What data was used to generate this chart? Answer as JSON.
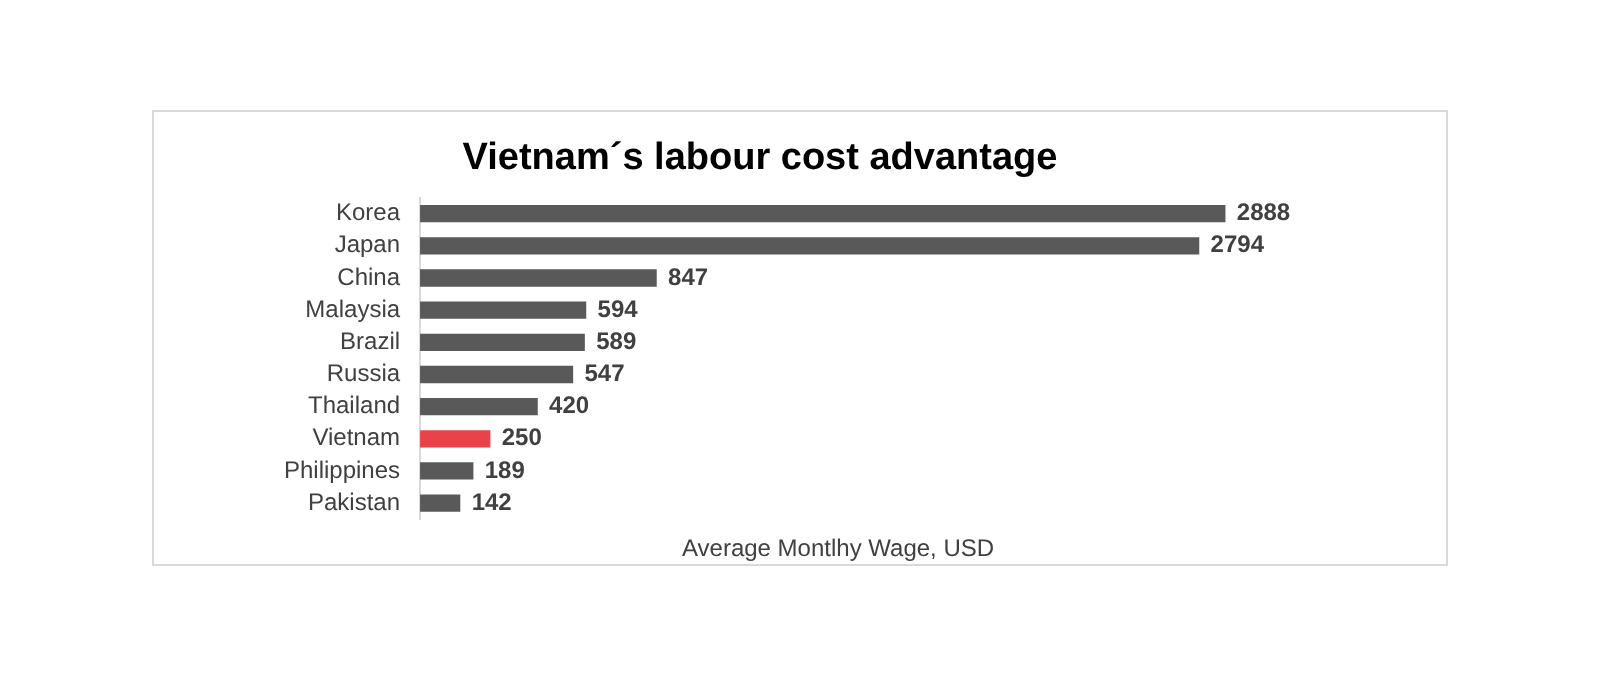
{
  "chart_data": {
    "type": "bar",
    "orientation": "horizontal",
    "title": "Vietnam´s labour cost advantage",
    "xlabel": "Average Montlhy Wage, USD",
    "categories": [
      "Korea",
      "Japan",
      "China",
      "Malaysia",
      "Brazil",
      "Russia",
      "Thailand",
      "Vietnam",
      "Philippines",
      "Pakistan"
    ],
    "values": [
      2888,
      2794,
      847,
      594,
      589,
      547,
      420,
      250,
      189,
      142
    ],
    "colors": [
      "#595959",
      "#595959",
      "#595959",
      "#595959",
      "#595959",
      "#595959",
      "#595959",
      "#e8434b",
      "#595959",
      "#595959"
    ],
    "data_labels": true,
    "legend": false,
    "grid": false
  }
}
